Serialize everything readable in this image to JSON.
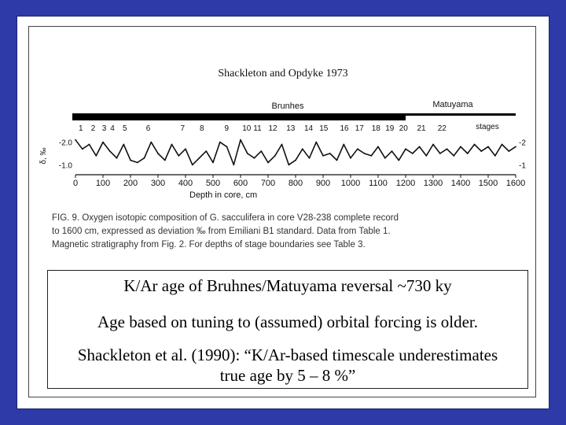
{
  "figure": {
    "title": "Shackleton and Opdyke 1973",
    "magnetic_chrons": [
      "Brunhes",
      "Matuyama"
    ],
    "stage_label": "stages",
    "stages": [
      "1",
      "2",
      "3",
      "4",
      "5",
      "6",
      "7",
      "8",
      "9",
      "10",
      "11",
      "12",
      "13",
      "14",
      "15",
      "16",
      "17",
      "18",
      "19",
      "20",
      "21",
      "22"
    ],
    "y_axis_label": "δ, ‰",
    "y_ticks_left": [
      "-2.0",
      "-1.0"
    ],
    "y_ticks_right": [
      "-2",
      "-1"
    ],
    "x_ticks": [
      "0",
      "100",
      "200",
      "300",
      "400",
      "500",
      "600",
      "700",
      "800",
      "900",
      "1000",
      "1100",
      "1200",
      "1300",
      "1400",
      "1500",
      "1600"
    ],
    "x_axis_label": "Depth in core, cm",
    "caption_lines": [
      "FIG. 9. Oxygen isotopic composition of G. sacculifera in core V28-238 complete record",
      "to 1600 cm, expressed as deviation ‰ from Emiliani B1 standard. Data from Table 1.",
      "Magnetic stratigraphy from Fig. 2. For depths of stage boundaries see Table 3."
    ]
  },
  "chart_data": {
    "type": "line",
    "xlabel": "Depth in core, cm",
    "ylabel": "δ, ‰",
    "xlim": [
      0,
      1600
    ],
    "ylim": [
      -2.3,
      -0.7
    ],
    "x": [
      0,
      25,
      50,
      75,
      100,
      125,
      150,
      175,
      200,
      225,
      250,
      275,
      300,
      325,
      350,
      375,
      400,
      425,
      450,
      475,
      500,
      525,
      550,
      575,
      600,
      625,
      650,
      675,
      700,
      725,
      750,
      775,
      800,
      825,
      850,
      875,
      900,
      925,
      950,
      975,
      1000,
      1025,
      1050,
      1075,
      1100,
      1125,
      1150,
      1175,
      1200,
      1225,
      1250,
      1275,
      1300,
      1325,
      1350,
      1375,
      1400,
      1425,
      1450,
      1475,
      1500,
      1525,
      1550,
      1575,
      1600
    ],
    "series": [
      {
        "values": [
          -2.1,
          -1.7,
          -1.9,
          -1.4,
          -2.0,
          -1.6,
          -1.3,
          -1.9,
          -1.2,
          -1.1,
          -1.3,
          -2.0,
          -1.5,
          -1.2,
          -1.9,
          -1.4,
          -1.7,
          -1.0,
          -1.3,
          -1.6,
          -1.1,
          -2.0,
          -1.8,
          -1.0,
          -2.1,
          -1.5,
          -1.3,
          -1.6,
          -1.1,
          -1.4,
          -1.9,
          -1.0,
          -1.2,
          -1.7,
          -1.3,
          -2.0,
          -1.4,
          -1.5,
          -1.2,
          -1.9,
          -1.3,
          -1.7,
          -1.5,
          -1.4,
          -1.8,
          -1.3,
          -1.6,
          -1.2,
          -1.7,
          -1.5,
          -1.8,
          -1.4,
          -1.9,
          -1.5,
          -1.7,
          -1.4,
          -1.8,
          -1.5,
          -1.9,
          -1.6,
          -1.8,
          -1.4,
          -1.9,
          -1.6,
          -1.8
        ]
      }
    ],
    "boundary_depth": 1200
  },
  "textbox": {
    "line1": "K/Ar age of Bruhnes/Matuyama reversal ~730 ky",
    "line2": "Age based on tuning to (assumed) orbital forcing is older.",
    "line3": "Shackleton et al. (1990): “K/Ar-based timescale underestimates true age by 5 – 8 %”"
  }
}
